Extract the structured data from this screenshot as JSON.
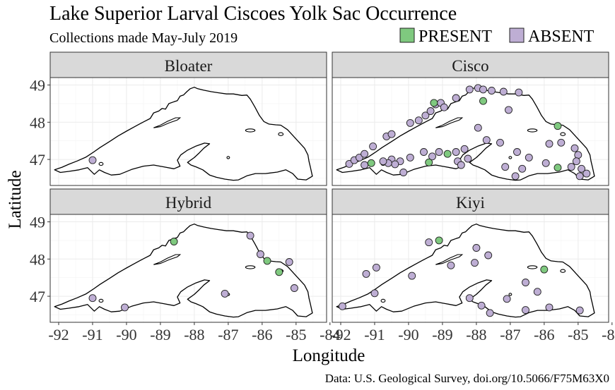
{
  "chart_data": {
    "type": "scatter",
    "title": "Lake Superior Larval Ciscoes Yolk Sac Occurrence",
    "subtitle": "Collections made May-July 2019",
    "xlabel": "Longitude",
    "ylabel": "Latitude",
    "caption": "Data: U.S. Geological Survey, doi.org/10.5066/F75M63X0",
    "xlim": [
      -92.25,
      -84.1
    ],
    "ylim": [
      46.3,
      49.2
    ],
    "x_ticks": [
      -92,
      -91,
      -90,
      -89,
      -88,
      -87,
      -86,
      -85,
      -84
    ],
    "x_tick_labels": [
      "-92",
      "-91",
      "-90",
      "-89",
      "-88",
      "-87",
      "-86",
      "-85",
      "-84"
    ],
    "y_ticks": [
      47,
      48,
      49
    ],
    "y_tick_labels": [
      "47",
      "48",
      "49"
    ],
    "grid": true,
    "legend": {
      "placement": "top-right",
      "entries": [
        {
          "label": "PRESENT",
          "color": "#7fc97f"
        },
        {
          "label": "ABSENT",
          "color": "#beaed4"
        }
      ]
    },
    "colors": {
      "PRESENT": "#7fc97f",
      "ABSENT": "#beaed4"
    },
    "facets": [
      {
        "label": "Bloater",
        "points": [
          {
            "lon": -91.0,
            "lat": 46.98,
            "status": "ABSENT"
          }
        ]
      },
      {
        "label": "Cisco",
        "points": [
          {
            "lon": -91.75,
            "lat": 46.88,
            "status": "ABSENT"
          },
          {
            "lon": -91.6,
            "lat": 46.98,
            "status": "ABSENT"
          },
          {
            "lon": -91.45,
            "lat": 47.05,
            "status": "ABSENT"
          },
          {
            "lon": -91.3,
            "lat": 47.15,
            "status": "ABSENT"
          },
          {
            "lon": -91.05,
            "lat": 47.35,
            "status": "ABSENT"
          },
          {
            "lon": -90.65,
            "lat": 47.62,
            "status": "ABSENT"
          },
          {
            "lon": -90.5,
            "lat": 47.68,
            "status": "ABSENT"
          },
          {
            "lon": -89.95,
            "lat": 47.98,
            "status": "ABSENT"
          },
          {
            "lon": -89.7,
            "lat": 48.05,
            "status": "ABSENT"
          },
          {
            "lon": -89.5,
            "lat": 48.18,
            "status": "ABSENT"
          },
          {
            "lon": -89.35,
            "lat": 48.3,
            "status": "ABSENT"
          },
          {
            "lon": -89.2,
            "lat": 48.48,
            "status": "ABSENT"
          },
          {
            "lon": -89.05,
            "lat": 48.52,
            "status": "ABSENT"
          },
          {
            "lon": -89.25,
            "lat": 48.52,
            "status": "PRESENT"
          },
          {
            "lon": -88.95,
            "lat": 48.4,
            "status": "ABSENT"
          },
          {
            "lon": -88.6,
            "lat": 48.65,
            "status": "ABSENT"
          },
          {
            "lon": -88.2,
            "lat": 48.88,
            "status": "ABSENT"
          },
          {
            "lon": -87.95,
            "lat": 48.92,
            "status": "ABSENT"
          },
          {
            "lon": -87.8,
            "lat": 48.88,
            "status": "ABSENT"
          },
          {
            "lon": -87.55,
            "lat": 48.85,
            "status": "ABSENT"
          },
          {
            "lon": -87.2,
            "lat": 48.82,
            "status": "ABSENT"
          },
          {
            "lon": -86.75,
            "lat": 48.8,
            "status": "ABSENT"
          },
          {
            "lon": -87.8,
            "lat": 48.57,
            "status": "PRESENT"
          },
          {
            "lon": -87.05,
            "lat": 48.33,
            "status": "ABSENT"
          },
          {
            "lon": -85.6,
            "lat": 47.9,
            "status": "PRESENT"
          },
          {
            "lon": -85.85,
            "lat": 47.42,
            "status": "ABSENT"
          },
          {
            "lon": -85.5,
            "lat": 47.45,
            "status": "ABSENT"
          },
          {
            "lon": -85.1,
            "lat": 47.3,
            "status": "ABSENT"
          },
          {
            "lon": -85.0,
            "lat": 47.12,
            "status": "ABSENT"
          },
          {
            "lon": -85.05,
            "lat": 46.95,
            "status": "ABSENT"
          },
          {
            "lon": -84.9,
            "lat": 46.75,
            "status": "ABSENT"
          },
          {
            "lon": -84.95,
            "lat": 46.55,
            "status": "ABSENT"
          },
          {
            "lon": -84.75,
            "lat": 46.62,
            "status": "ABSENT"
          },
          {
            "lon": -85.2,
            "lat": 46.8,
            "status": "ABSENT"
          },
          {
            "lon": -85.6,
            "lat": 46.78,
            "status": "PRESENT"
          },
          {
            "lon": -85.95,
            "lat": 46.9,
            "status": "ABSENT"
          },
          {
            "lon": -86.45,
            "lat": 47.05,
            "status": "ABSENT"
          },
          {
            "lon": -86.8,
            "lat": 47.2,
            "status": "ABSENT"
          },
          {
            "lon": -87.3,
            "lat": 47.45,
            "status": "ABSENT"
          },
          {
            "lon": -87.7,
            "lat": 47.52,
            "status": "ABSENT"
          },
          {
            "lon": -87.95,
            "lat": 47.85,
            "status": "ABSENT"
          },
          {
            "lon": -88.35,
            "lat": 47.28,
            "status": "ABSENT"
          },
          {
            "lon": -88.6,
            "lat": 47.2,
            "status": "ABSENT"
          },
          {
            "lon": -88.85,
            "lat": 47.15,
            "status": "PRESENT"
          },
          {
            "lon": -89.1,
            "lat": 47.2,
            "status": "ABSENT"
          },
          {
            "lon": -89.3,
            "lat": 47.08,
            "status": "ABSENT"
          },
          {
            "lon": -89.55,
            "lat": 47.2,
            "status": "ABSENT"
          },
          {
            "lon": -89.95,
            "lat": 47.05,
            "status": "ABSENT"
          },
          {
            "lon": -90.5,
            "lat": 47.0,
            "status": "ABSENT"
          },
          {
            "lon": -90.25,
            "lat": 46.95,
            "status": "ABSENT"
          },
          {
            "lon": -90.4,
            "lat": 46.87,
            "status": "ABSENT"
          },
          {
            "lon": -90.6,
            "lat": 46.9,
            "status": "ABSENT"
          },
          {
            "lon": -90.75,
            "lat": 46.95,
            "status": "ABSENT"
          },
          {
            "lon": -91.1,
            "lat": 46.9,
            "status": "PRESENT"
          },
          {
            "lon": -91.3,
            "lat": 46.85,
            "status": "ABSENT"
          },
          {
            "lon": -90.15,
            "lat": 46.65,
            "status": "ABSENT"
          },
          {
            "lon": -89.4,
            "lat": 46.92,
            "status": "PRESENT"
          },
          {
            "lon": -88.55,
            "lat": 46.95,
            "status": "ABSENT"
          },
          {
            "lon": -88.25,
            "lat": 47.02,
            "status": "ABSENT"
          },
          {
            "lon": -87.15,
            "lat": 46.8,
            "status": "ABSENT"
          },
          {
            "lon": -86.65,
            "lat": 46.75,
            "status": "ABSENT"
          },
          {
            "lon": -86.85,
            "lat": 46.55,
            "status": "ABSENT"
          },
          {
            "lon": -88.45,
            "lat": 46.85,
            "status": "ABSENT"
          }
        ]
      },
      {
        "label": "Hybrid",
        "points": [
          {
            "lon": -91.0,
            "lat": 46.95,
            "status": "ABSENT"
          },
          {
            "lon": -90.05,
            "lat": 46.7,
            "status": "ABSENT"
          },
          {
            "lon": -88.6,
            "lat": 48.47,
            "status": "PRESENT"
          },
          {
            "lon": -86.35,
            "lat": 48.63,
            "status": "ABSENT"
          },
          {
            "lon": -86.05,
            "lat": 48.13,
            "status": "ABSENT"
          },
          {
            "lon": -85.85,
            "lat": 47.95,
            "status": "PRESENT"
          },
          {
            "lon": -85.2,
            "lat": 47.92,
            "status": "ABSENT"
          },
          {
            "lon": -85.5,
            "lat": 47.65,
            "status": "PRESENT"
          },
          {
            "lon": -85.05,
            "lat": 47.22,
            "status": "ABSENT"
          },
          {
            "lon": -87.1,
            "lat": 47.07,
            "status": "ABSENT"
          }
        ]
      },
      {
        "label": "Kiyi",
        "points": [
          {
            "lon": -91.95,
            "lat": 46.73,
            "status": "ABSENT"
          },
          {
            "lon": -91.0,
            "lat": 47.08,
            "status": "ABSENT"
          },
          {
            "lon": -89.9,
            "lat": 47.55,
            "status": "ABSENT"
          },
          {
            "lon": -91.25,
            "lat": 47.6,
            "status": "ABSENT"
          },
          {
            "lon": -90.95,
            "lat": 47.77,
            "status": "ABSENT"
          },
          {
            "lon": -89.4,
            "lat": 48.45,
            "status": "ABSENT"
          },
          {
            "lon": -89.1,
            "lat": 48.5,
            "status": "PRESENT"
          },
          {
            "lon": -88.75,
            "lat": 47.83,
            "status": "ABSENT"
          },
          {
            "lon": -88.05,
            "lat": 47.9,
            "status": "ABSENT"
          },
          {
            "lon": -88.0,
            "lat": 48.3,
            "status": "ABSENT"
          },
          {
            "lon": -87.65,
            "lat": 48.1,
            "status": "ABSENT"
          },
          {
            "lon": -87.1,
            "lat": 46.93,
            "status": "ABSENT"
          },
          {
            "lon": -86.55,
            "lat": 47.37,
            "status": "ABSENT"
          },
          {
            "lon": -86.0,
            "lat": 47.72,
            "status": "PRESENT"
          },
          {
            "lon": -86.2,
            "lat": 47.12,
            "status": "ABSENT"
          },
          {
            "lon": -85.85,
            "lat": 46.7,
            "status": "ABSENT"
          },
          {
            "lon": -86.55,
            "lat": 46.63,
            "status": "ABSENT"
          },
          {
            "lon": -87.85,
            "lat": 46.75,
            "status": "ABSENT"
          },
          {
            "lon": -87.6,
            "lat": 46.55,
            "status": "ABSENT"
          },
          {
            "lon": -88.2,
            "lat": 46.95,
            "status": "ABSENT"
          },
          {
            "lon": -84.95,
            "lat": 46.62,
            "status": "ABSENT"
          }
        ]
      }
    ]
  }
}
